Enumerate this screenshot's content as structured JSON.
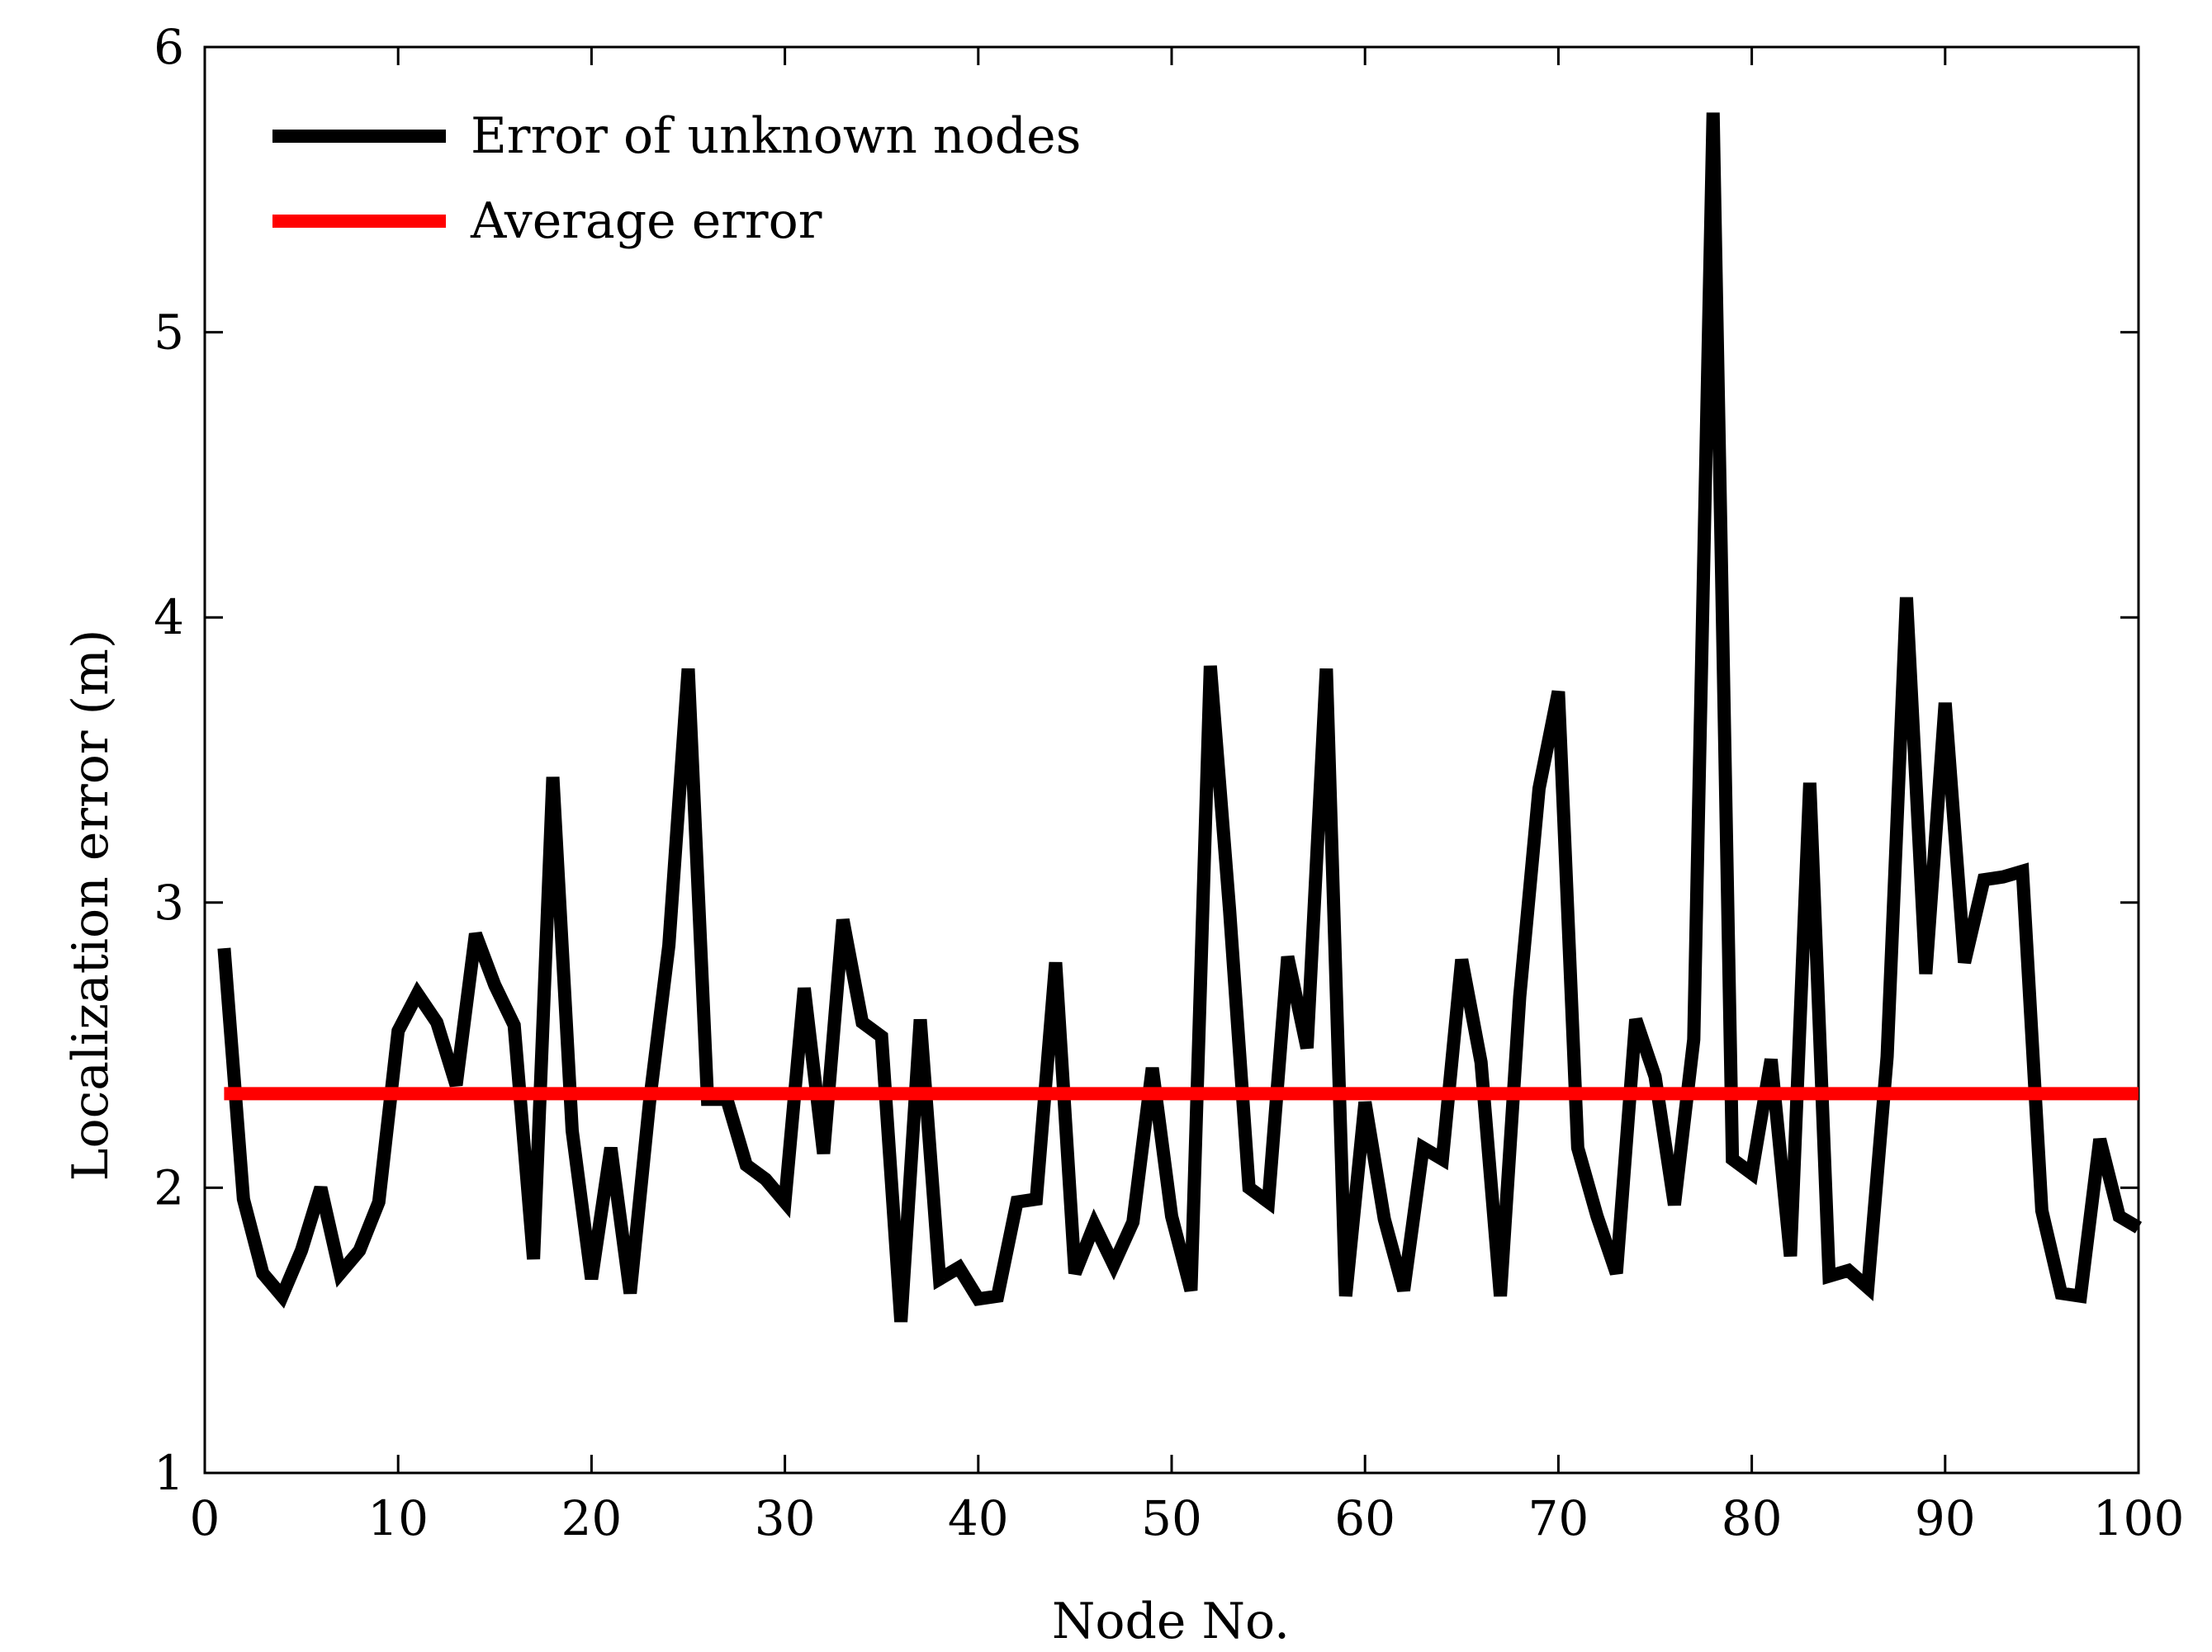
{
  "chart_data": {
    "type": "line",
    "title": "",
    "xlabel": "Node No.",
    "ylabel": "Localization error (m)",
    "xlim": [
      0,
      100
    ],
    "ylim": [
      1,
      6
    ],
    "xticks": [
      0,
      10,
      20,
      30,
      40,
      50,
      60,
      70,
      80,
      90,
      100
    ],
    "yticks": [
      1,
      2,
      3,
      4,
      5,
      6
    ],
    "xtick_labels": [
      "0",
      "10",
      "20",
      "30",
      "40",
      "50",
      "60",
      "70",
      "80",
      "90",
      "100"
    ],
    "ytick_labels": [
      "1",
      "2",
      "3",
      "4",
      "5",
      "6"
    ],
    "grid": false,
    "legend_position": "top-left",
    "series": [
      {
        "name": "Error of unknown nodes",
        "color": "#000000",
        "x": [
          1,
          2,
          3,
          4,
          5,
          6,
          7,
          8,
          9,
          10,
          11,
          12,
          13,
          14,
          15,
          16,
          17,
          18,
          19,
          20,
          21,
          22,
          23,
          24,
          25,
          26,
          27,
          28,
          29,
          30,
          31,
          32,
          33,
          34,
          35,
          36,
          37,
          38,
          39,
          40,
          41,
          42,
          43,
          44,
          45,
          46,
          47,
          48,
          49,
          50,
          51,
          52,
          53,
          54,
          55,
          56,
          57,
          58,
          59,
          60,
          61,
          62,
          63,
          64,
          65,
          66,
          67,
          68,
          69,
          70,
          71,
          72,
          73,
          74,
          75,
          76,
          77,
          78,
          79,
          80,
          81,
          82,
          83,
          84,
          85,
          86,
          87,
          88,
          89,
          90,
          91,
          92,
          93,
          94,
          95,
          96,
          97,
          98,
          99,
          100
        ],
        "values": [
          2.84,
          1.96,
          1.7,
          1.62,
          1.78,
          2.0,
          1.7,
          1.78,
          1.95,
          2.55,
          2.68,
          2.58,
          2.36,
          2.89,
          2.71,
          2.57,
          1.75,
          3.44,
          2.2,
          1.68,
          2.14,
          1.63,
          2.3,
          2.85,
          3.82,
          2.31,
          2.31,
          2.08,
          2.03,
          1.95,
          2.7,
          2.12,
          2.94,
          2.58,
          2.53,
          1.53,
          2.59,
          1.68,
          1.72,
          1.61,
          1.62,
          1.95,
          1.96,
          2.79,
          1.7,
          1.87,
          1.73,
          1.88,
          2.42,
          1.9,
          1.64,
          3.83,
          2.97,
          2.0,
          1.95,
          2.81,
          2.49,
          3.82,
          1.62,
          2.3,
          1.89,
          1.64,
          2.14,
          2.1,
          2.8,
          2.44,
          1.62,
          2.67,
          3.4,
          3.74,
          2.14,
          1.9,
          1.7,
          2.59,
          2.39,
          1.94,
          2.52,
          5.77,
          2.1,
          2.05,
          2.45,
          1.76,
          3.42,
          1.69,
          1.71,
          1.65,
          2.46,
          4.07,
          2.75,
          3.7,
          2.79,
          3.08,
          3.09,
          3.11,
          1.92,
          1.63,
          1.62,
          2.17,
          1.9,
          1.86
        ]
      },
      {
        "name": "Average error",
        "color": "#ff0000",
        "x": [
          1,
          100
        ],
        "values": [
          2.33,
          2.33
        ]
      }
    ]
  }
}
